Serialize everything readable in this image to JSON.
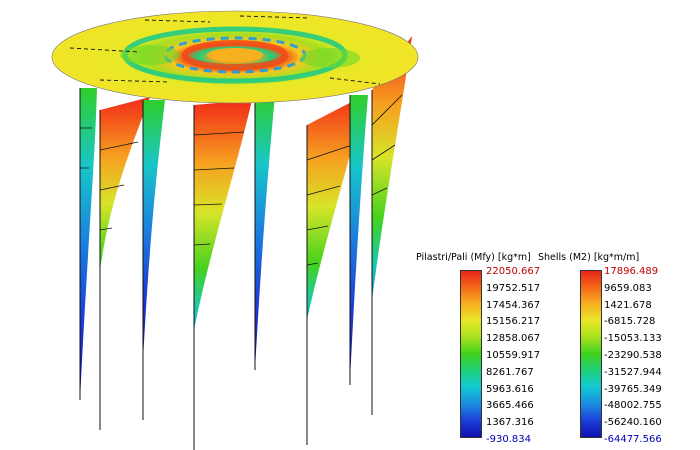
{
  "legend_columns": [
    {
      "title": "Pilastri/Pali (Mfy) [kg*m]",
      "values": [
        "22050.667",
        "19752.517",
        "17454.367",
        "15156.217",
        "12858.067",
        "10559.917",
        "8261.767",
        "5963.616",
        "3665.466",
        "1367.316",
        "-930.834"
      ]
    },
    {
      "title": "Shells (M2) [kg*m/m]",
      "values": [
        "17896.489",
        "9659.083",
        "1421.678",
        "-6815.728",
        "-15053.133",
        "-23290.538",
        "-31527.944",
        "-39765.349",
        "-48002.755",
        "-56240.160",
        "-64477.566"
      ]
    }
  ],
  "colors": {
    "scale": [
      "#e8251a",
      "#f46a1a",
      "#f7b020",
      "#e8e827",
      "#a6e01f",
      "#3ed11d",
      "#1fd07a",
      "#12c8d4",
      "#1a8de0",
      "#1d3fd8",
      "#1010b0"
    ],
    "max_label": "#c00000",
    "min_label": "#0000b0"
  }
}
